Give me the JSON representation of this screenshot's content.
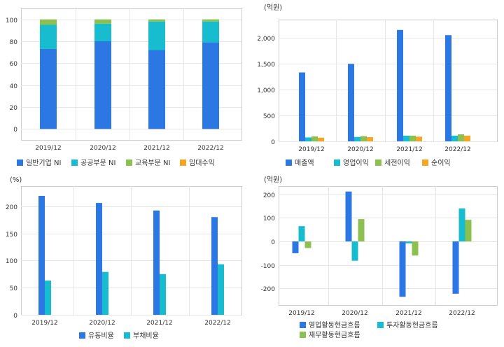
{
  "colors": {
    "blue": "#2b78e4",
    "cyan": "#17bccf",
    "green": "#8cc152",
    "orange": "#f6a623",
    "grid": "#e6e6e6",
    "frame": "#cccccc",
    "text": "#333333"
  },
  "chart_data": [
    {
      "id": "c1",
      "type": "bar",
      "stacked": true,
      "unit_label": "",
      "categories": [
        "2019/12",
        "2020/12",
        "2021/12",
        "2022/12"
      ],
      "series": [
        {
          "name": "일반기업 NI",
          "color": "blue",
          "values": [
            73,
            80,
            72,
            79
          ]
        },
        {
          "name": "공공부문 NI",
          "color": "cyan",
          "values": [
            22,
            16,
            26,
            19
          ]
        },
        {
          "name": "교육부문 NI",
          "color": "green",
          "values": [
            5,
            4,
            2,
            2
          ]
        },
        {
          "name": "임대수익",
          "color": "orange",
          "values": [
            0,
            0,
            0,
            0
          ]
        }
      ],
      "yticks": [
        0,
        20,
        40,
        60,
        80,
        100
      ],
      "ytick_labels": [
        "0",
        "20",
        "40",
        "60",
        "80",
        "100"
      ],
      "ylim": [
        -10,
        110
      ],
      "grid": true,
      "legend": "bottom"
    },
    {
      "id": "c2",
      "type": "bar",
      "stacked": false,
      "unit_label": "(억원)",
      "categories": [
        "2019/12",
        "2020/12",
        "2021/12",
        "2022/12"
      ],
      "series": [
        {
          "name": "매출액",
          "color": "blue",
          "values": [
            1330,
            1495,
            2150,
            2050
          ]
        },
        {
          "name": "영업이익",
          "color": "cyan",
          "values": [
            75,
            85,
            110,
            110
          ]
        },
        {
          "name": "세전이익",
          "color": "green",
          "values": [
            95,
            100,
            110,
            135
          ]
        },
        {
          "name": "순이익",
          "color": "orange",
          "values": [
            70,
            80,
            90,
            110
          ]
        }
      ],
      "yticks": [
        0,
        500,
        1000,
        1500,
        2000
      ],
      "ytick_labels": [
        "0",
        "500",
        "1,000",
        "1,500",
        "2,000"
      ],
      "ylim": [
        0,
        2350
      ],
      "grid": true,
      "legend": "bottom"
    },
    {
      "id": "c3",
      "type": "bar",
      "stacked": false,
      "unit_label": "(%)",
      "categories": [
        "2019/12",
        "2020/12",
        "2021/12",
        "2022/12"
      ],
      "series": [
        {
          "name": "유동비율",
          "color": "blue",
          "values": [
            219,
            206,
            192,
            180
          ]
        },
        {
          "name": "부채비율",
          "color": "cyan",
          "values": [
            63,
            79,
            75,
            93
          ]
        }
      ],
      "yticks": [
        0,
        50,
        100,
        150,
        200
      ],
      "ytick_labels": [
        "0",
        "50",
        "100",
        "150",
        "200"
      ],
      "ylim": [
        0,
        237
      ],
      "grid": true,
      "legend": "bottom"
    },
    {
      "id": "c4",
      "type": "bar",
      "stacked": false,
      "unit_label": "(억원)",
      "categories": [
        "2019/12",
        "2020/12",
        "2021/12",
        "2022/12"
      ],
      "series": [
        {
          "name": "영업활동현금흐름",
          "color": "blue",
          "values": [
            -50,
            212,
            -235,
            -222
          ]
        },
        {
          "name": "투자활동현금흐름",
          "color": "cyan",
          "values": [
            65,
            -82,
            -8,
            140
          ]
        },
        {
          "name": "재무활동현금흐름",
          "color": "green",
          "values": [
            -28,
            95,
            -60,
            92
          ]
        }
      ],
      "yticks": [
        -200,
        -100,
        0,
        100,
        200
      ],
      "ytick_labels": [
        "-200",
        "-100",
        "0",
        "100",
        "200"
      ],
      "ylim": [
        -270,
        235
      ],
      "grid": true,
      "legend": "bottom"
    }
  ]
}
